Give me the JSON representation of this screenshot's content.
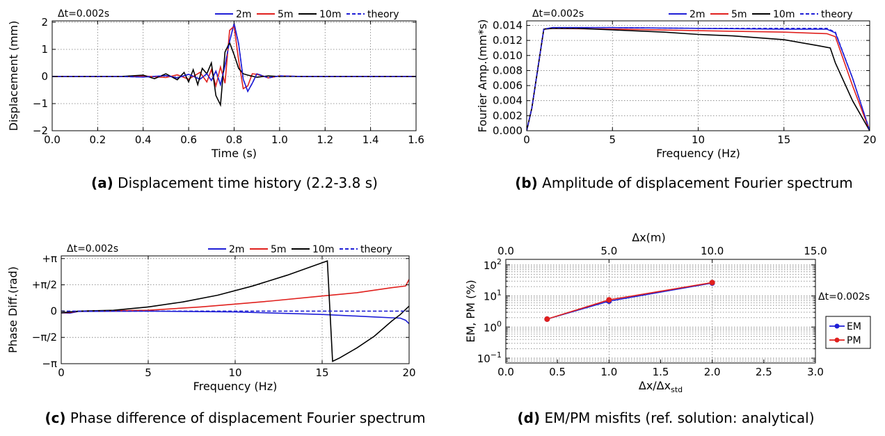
{
  "colors": {
    "2m": "#1f1fd6",
    "5m": "#e0201d",
    "10m": "#000000",
    "theory": "#1f1fd6",
    "EM": "#1f1fd6",
    "PM": "#e0201d"
  },
  "chart_data": [
    {
      "id": "a",
      "type": "line",
      "caption_label": "(a)",
      "caption_text": "Displacement time history (2.2-3.8 s)",
      "annotation": "Δt=0.002s",
      "xlabel": "Time (s)",
      "ylabel": "Displacement (mm)",
      "xlim": [
        0,
        1.6
      ],
      "ylim": [
        -2.2,
        2.2
      ],
      "xticks": [
        "0.0",
        "0.2",
        "0.4",
        "0.6",
        "0.8",
        "1.0",
        "1.2",
        "1.4",
        "1.6"
      ],
      "yticks": [
        "−2",
        "−1",
        "0",
        "1",
        "2"
      ],
      "grid": true,
      "legend": "top-right",
      "series": [
        {
          "name": "2m",
          "style": "solid",
          "x": [
            0,
            0.3,
            0.4,
            0.5,
            0.55,
            0.6,
            0.65,
            0.68,
            0.7,
            0.72,
            0.74,
            0.76,
            0.78,
            0.8,
            0.82,
            0.84,
            0.86,
            0.88,
            0.9,
            0.95,
            1.0,
            1.1,
            1.6
          ],
          "y": [
            0,
            0,
            -0.02,
            0.03,
            -0.05,
            0.08,
            -0.1,
            0.1,
            -0.15,
            0.2,
            -0.3,
            0.4,
            1.3,
            1.95,
            1.2,
            -0.1,
            -0.55,
            -0.25,
            0.1,
            -0.05,
            0.02,
            0,
            0
          ]
        },
        {
          "name": "5m",
          "style": "solid",
          "x": [
            0,
            0.3,
            0.4,
            0.5,
            0.55,
            0.6,
            0.65,
            0.68,
            0.7,
            0.72,
            0.74,
            0.76,
            0.78,
            0.8,
            0.82,
            0.84,
            0.86,
            0.88,
            0.9,
            0.95,
            1.0,
            1.1,
            1.6
          ],
          "y": [
            0,
            0,
            0.02,
            -0.04,
            0.06,
            -0.1,
            0.15,
            -0.2,
            0.25,
            -0.35,
            0.35,
            -0.25,
            1.7,
            1.85,
            0.6,
            -0.45,
            -0.35,
            0.1,
            0.08,
            -0.05,
            0.02,
            0,
            0
          ]
        },
        {
          "name": "10m",
          "style": "solid",
          "x": [
            0,
            0.3,
            0.4,
            0.45,
            0.5,
            0.55,
            0.58,
            0.6,
            0.62,
            0.64,
            0.66,
            0.68,
            0.7,
            0.72,
            0.74,
            0.76,
            0.78,
            0.8,
            0.82,
            0.84,
            0.86,
            0.9,
            0.95,
            1.0,
            1.6
          ],
          "y": [
            0,
            0,
            0.05,
            -0.08,
            0.1,
            -0.12,
            0.15,
            -0.2,
            0.25,
            -0.3,
            0.3,
            0.1,
            0.5,
            -0.7,
            -1.05,
            0.9,
            1.25,
            0.8,
            0.3,
            0.1,
            0.05,
            -0.03,
            0.02,
            0,
            0
          ]
        },
        {
          "name": "theory",
          "style": "dashed",
          "x": [
            0,
            0.3,
            0.4,
            0.5,
            0.55,
            0.6,
            0.65,
            0.68,
            0.7,
            0.72,
            0.74,
            0.76,
            0.78,
            0.8,
            0.82,
            0.84,
            0.86,
            0.88,
            0.9,
            0.95,
            1.0,
            1.1,
            1.6
          ],
          "y": [
            0,
            0,
            -0.02,
            0.03,
            -0.05,
            0.08,
            -0.1,
            0.1,
            -0.15,
            0.2,
            -0.3,
            0.4,
            1.3,
            1.95,
            1.2,
            -0.1,
            -0.55,
            -0.25,
            0.1,
            -0.05,
            0.02,
            0,
            0
          ]
        }
      ]
    },
    {
      "id": "b",
      "type": "line",
      "caption_label": "(b)",
      "caption_text": "Amplitude of displacement Fourier spectrum",
      "annotation": "Δt=0.002s",
      "xlabel": "Frequency (Hz)",
      "ylabel": "Fourier Amp.(mm*s)",
      "xlim": [
        0,
        20
      ],
      "ylim": [
        0,
        0.015
      ],
      "xticks": [
        "0",
        "5",
        "10",
        "15",
        "20"
      ],
      "yticks": [
        "0.000",
        "0.002",
        "0.004",
        "0.006",
        "0.008",
        "0.010",
        "0.012",
        "0.014"
      ],
      "grid": true,
      "legend": "top-right",
      "series": [
        {
          "name": "2m",
          "style": "solid",
          "x": [
            0,
            0.3,
            1,
            1.5,
            5,
            10,
            15,
            17.5,
            18,
            19,
            20
          ],
          "y": [
            0,
            0.003,
            0.0135,
            0.0137,
            0.0137,
            0.0136,
            0.0135,
            0.0135,
            0.013,
            0.007,
            0
          ]
        },
        {
          "name": "5m",
          "style": "solid",
          "x": [
            0,
            0.3,
            1,
            1.5,
            5,
            10,
            15,
            17.5,
            18,
            19,
            20
          ],
          "y": [
            0,
            0.003,
            0.0135,
            0.0136,
            0.0135,
            0.0133,
            0.0131,
            0.0129,
            0.0125,
            0.006,
            0
          ]
        },
        {
          "name": "10m",
          "style": "solid",
          "x": [
            0,
            0.3,
            1,
            1.5,
            3,
            5,
            8,
            10,
            12,
            15,
            17,
            17.7,
            18,
            19,
            20
          ],
          "y": [
            0,
            0.003,
            0.0135,
            0.0136,
            0.0136,
            0.0134,
            0.0131,
            0.0128,
            0.0126,
            0.0121,
            0.0113,
            0.011,
            0.009,
            0.004,
            0
          ]
        },
        {
          "name": "theory",
          "style": "dashed",
          "x": [
            0,
            0.3,
            1,
            1.5,
            5,
            10,
            15,
            17.5,
            18,
            19,
            20
          ],
          "y": [
            0,
            0.003,
            0.0135,
            0.0137,
            0.0137,
            0.0136,
            0.0136,
            0.0136,
            0.0131,
            0.007,
            0
          ]
        }
      ]
    },
    {
      "id": "c",
      "type": "line",
      "caption_label": "(c)",
      "caption_text": "Phase difference of displacement Fourier spectrum",
      "annotation": "Δt=0.002s",
      "xlabel": "Frequency (Hz)",
      "ylabel": "Phase Diff.(rad)",
      "xlim": [
        0,
        20
      ],
      "ylim": [
        -3.3,
        3.5
      ],
      "xticks": [
        "0",
        "5",
        "10",
        "15",
        "20"
      ],
      "yticks": [
        "+π",
        "+π/2",
        "0",
        "−π/2",
        "−π"
      ],
      "grid": true,
      "legend": "top-right",
      "series": [
        {
          "name": "2m",
          "style": "solid",
          "x": [
            0,
            0.5,
            1,
            5,
            10,
            15,
            18,
            19,
            19.5,
            19.8,
            20
          ],
          "y": [
            -0.1,
            -0.12,
            -0.02,
            0,
            -0.05,
            -0.2,
            -0.35,
            -0.4,
            -0.42,
            -0.55,
            -0.75
          ]
        },
        {
          "name": "5m",
          "style": "solid",
          "x": [
            0,
            0.5,
            1,
            5,
            8,
            10,
            12,
            15,
            17,
            18,
            19,
            19.8,
            20
          ],
          "y": [
            -0.1,
            -0.08,
            0,
            0.05,
            0.25,
            0.42,
            0.6,
            0.9,
            1.1,
            1.25,
            1.4,
            1.5,
            1.9
          ]
        },
        {
          "name": "10m",
          "style": "solid",
          "x": [
            0,
            0.5,
            1,
            3,
            5,
            7,
            9,
            11,
            13,
            15.3,
            15.6,
            16,
            17,
            18,
            19,
            19.5,
            20
          ],
          "y": [
            -0.1,
            -0.05,
            0,
            0.05,
            0.25,
            0.55,
            0.95,
            1.5,
            2.15,
            3.0,
            -3.0,
            -2.8,
            -2.2,
            -1.5,
            -0.6,
            -0.2,
            0.3
          ]
        },
        {
          "name": "theory",
          "style": "dashed",
          "x": [
            0,
            20
          ],
          "y": [
            0,
            0
          ]
        }
      ]
    },
    {
      "id": "d",
      "type": "line",
      "caption_label": "(d)",
      "caption_text": "EM/PM misfits (ref. solution: analytical)",
      "annotation": "Δt=0.002s",
      "xlabel": "Δx/Δx",
      "xlabel_sub": "std",
      "x2label": "Δx(m)",
      "ylabel": "EM, PM (%)",
      "xlim": [
        0,
        3
      ],
      "x2lim": [
        0,
        15
      ],
      "ylim": [
        0.07,
        150
      ],
      "yscale": "log",
      "xticks": [
        "0.0",
        "0.5",
        "1.0",
        "1.5",
        "2.0",
        "2.5",
        "3.0"
      ],
      "x2ticks": [
        "0.0",
        "5.0",
        "10.0",
        "15.0"
      ],
      "yticks": [
        {
          "base": "10",
          "exp": "−1"
        },
        {
          "base": "10",
          "exp": "0"
        },
        {
          "base": "10",
          "exp": "1"
        },
        {
          "base": "10",
          "exp": "2"
        }
      ],
      "grid": true,
      "legend": "right",
      "series": [
        {
          "name": "EM",
          "style": "solid-marker",
          "x": [
            0.4,
            1.0,
            2.0
          ],
          "y": [
            1.8,
            6.8,
            26
          ]
        },
        {
          "name": "PM",
          "style": "solid-marker",
          "x": [
            0.4,
            1.0,
            2.0
          ],
          "y": [
            1.8,
            7.5,
            27
          ]
        }
      ]
    }
  ]
}
